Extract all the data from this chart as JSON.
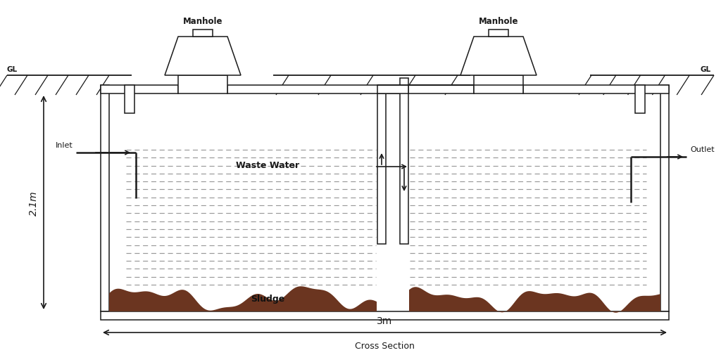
{
  "bg_color": "#ffffff",
  "line_color": "#1a1a1a",
  "sludge_color": "#6b3520",
  "title": "Cross Section",
  "dim_2_1m": "2.1m",
  "dim_3m": "3m",
  "GL_label": "GL",
  "inlet_label": "Inlet",
  "outlet_label": "Outlet",
  "manhole_label": "Manhole",
  "wastewater_label": "Waste Water",
  "sludge_label": "Sludge",
  "lw": 1.1
}
